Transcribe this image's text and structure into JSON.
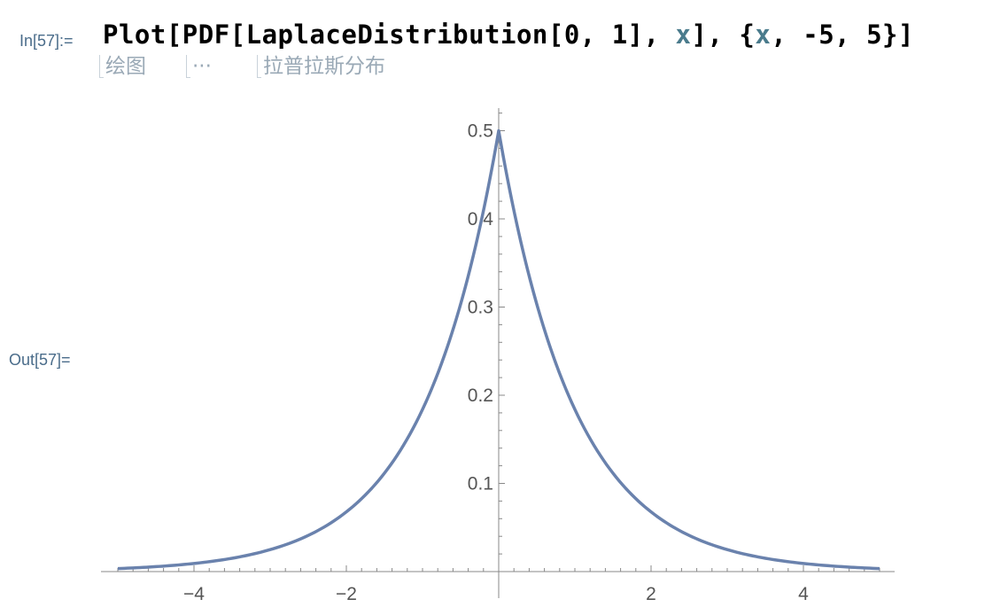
{
  "notebook": {
    "in_label": "In[57]:=",
    "out_label": "Out[57]=",
    "input": {
      "parts": [
        {
          "text": "Plot[PDF[LaplaceDistribution[0, 1], ",
          "kind": "code"
        },
        {
          "text": "x",
          "kind": "var"
        },
        {
          "text": "], {",
          "kind": "code"
        },
        {
          "text": "x",
          "kind": "var"
        },
        {
          "text": ", -5, 5}]",
          "kind": "code"
        }
      ]
    },
    "suggestions": [
      "绘图",
      "···",
      "拉普拉斯分布"
    ]
  },
  "colors": {
    "curve": "#6a82ad",
    "axis": "#888888",
    "label": "#4a6c8a",
    "tick_text": "#555555"
  },
  "chart_data": {
    "type": "line",
    "title": "",
    "xlabel": "",
    "ylabel": "",
    "xlim": [
      -5,
      5
    ],
    "ylim": [
      0,
      0.5
    ],
    "x_ticks": [
      -4,
      -2,
      2,
      4
    ],
    "x_tick_labels": [
      "−4",
      "−2",
      "2",
      "4"
    ],
    "y_ticks": [
      0.1,
      0.2,
      0.3,
      0.4,
      0.5
    ],
    "y_tick_labels": [
      "0.1",
      "0.2",
      "0.3",
      "0.4",
      "0.5"
    ],
    "grid": false,
    "series": [
      {
        "x": [
          -5,
          -4.5,
          -4,
          -3.5,
          -3,
          -2.5,
          -2,
          -1.5,
          -1,
          -0.75,
          -0.5,
          -0.25,
          0,
          0.25,
          0.5,
          0.75,
          1,
          1.5,
          2,
          2.5,
          3,
          3.5,
          4,
          4.5,
          5
        ],
        "values": [
          0.0034,
          0.0056,
          0.0092,
          0.0151,
          0.0249,
          0.041,
          0.0677,
          0.1116,
          0.1839,
          0.2362,
          0.3033,
          0.3894,
          0.5,
          0.3894,
          0.3033,
          0.2362,
          0.1839,
          0.1116,
          0.0677,
          0.041,
          0.0249,
          0.0151,
          0.0092,
          0.0056,
          0.0034
        ]
      }
    ]
  }
}
